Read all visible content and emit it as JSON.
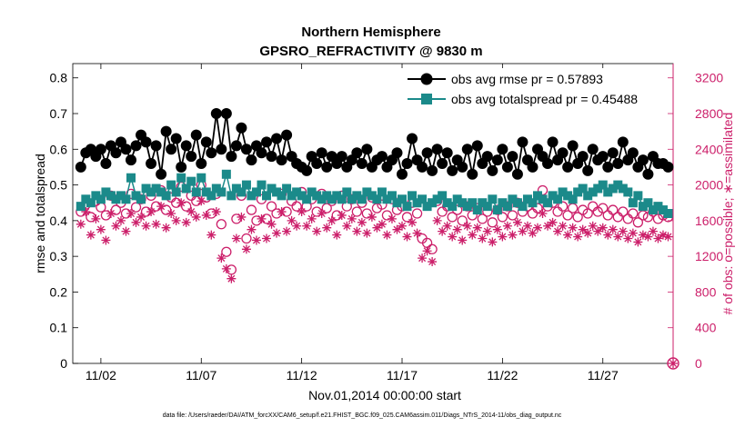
{
  "chart_data": {
    "type": "line",
    "title": [
      "Northern Hemisphere",
      "GPSRO_REFRACTIVITY @ 9830 m"
    ],
    "xlabel": "Nov.01,2014 00:00:00 start",
    "ylabel_left": "rmse and totalspread",
    "ylabel_right": "# of obs: o=possible; ∗=assimilated",
    "footnote": "data file: /Users/raeder/DAI/ATM_forcXX/CAM6_setup/f.e21.FHIST_BGC.f09_025.CAM6assim.011/Diags_NTrS_2014-11/obs_diag_output.nc",
    "xlim": [
      0.6,
      30.5
    ],
    "ylim_left": [
      0,
      0.84
    ],
    "ylim_right": [
      0,
      3360
    ],
    "x_ticks": [
      2,
      7,
      12,
      17,
      22,
      27
    ],
    "x_tick_labels": [
      "11/02",
      "11/07",
      "11/12",
      "11/17",
      "11/22",
      "11/27"
    ],
    "y_ticks_left": [
      0,
      0.1,
      0.2,
      0.3,
      0.4,
      0.5,
      0.6,
      0.7,
      0.8
    ],
    "y_tick_labels_left": [
      "0",
      "0.1",
      "0.2",
      "0.3",
      "0.4",
      "0.5",
      "0.6",
      "0.7",
      "0.8"
    ],
    "y_ticks_right": [
      0,
      400,
      800,
      1200,
      1600,
      2000,
      2400,
      2800,
      3200
    ],
    "y_tick_labels_right": [
      "0",
      "400",
      "800",
      "1200",
      "1600",
      "2000",
      "2400",
      "2800",
      "3200"
    ],
    "x": [
      1.0,
      1.25,
      1.5,
      1.75,
      2.0,
      2.25,
      2.5,
      2.75,
      3.0,
      3.25,
      3.5,
      3.75,
      4.0,
      4.25,
      4.5,
      4.75,
      5.0,
      5.25,
      5.5,
      5.75,
      6.0,
      6.25,
      6.5,
      6.75,
      7.0,
      7.25,
      7.5,
      7.75,
      8.0,
      8.25,
      8.5,
      8.75,
      9.0,
      9.25,
      9.5,
      9.75,
      10.0,
      10.25,
      10.5,
      10.75,
      11.0,
      11.25,
      11.5,
      11.75,
      12.0,
      12.25,
      12.5,
      12.75,
      13.0,
      13.25,
      13.5,
      13.75,
      14.0,
      14.25,
      14.5,
      14.75,
      15.0,
      15.25,
      15.5,
      15.75,
      16.0,
      16.25,
      16.5,
      16.75,
      17.0,
      17.25,
      17.5,
      17.75,
      18.0,
      18.25,
      18.5,
      18.75,
      19.0,
      19.25,
      19.5,
      19.75,
      20.0,
      20.25,
      20.5,
      20.75,
      21.0,
      21.25,
      21.5,
      21.75,
      22.0,
      22.25,
      22.5,
      22.75,
      23.0,
      23.25,
      23.5,
      23.75,
      24.0,
      24.25,
      24.5,
      24.75,
      25.0,
      25.25,
      25.5,
      25.75,
      26.0,
      26.25,
      26.5,
      26.75,
      27.0,
      27.25,
      27.5,
      27.75,
      28.0,
      28.25,
      28.5,
      28.75,
      29.0,
      29.25,
      29.5,
      29.75,
      30.0,
      30.25
    ],
    "series": [
      {
        "name": "obs avg rmse",
        "legend": "obs avg rmse pr = 0.57893",
        "axis": "left",
        "color": "#000000",
        "marker": "circle",
        "values": [
          0.55,
          0.59,
          0.6,
          0.58,
          0.6,
          0.56,
          0.61,
          0.59,
          0.62,
          0.6,
          0.57,
          0.61,
          0.64,
          0.62,
          0.56,
          0.61,
          0.53,
          0.65,
          0.6,
          0.63,
          0.55,
          0.61,
          0.58,
          0.64,
          0.56,
          0.62,
          0.59,
          0.7,
          0.6,
          0.7,
          0.58,
          0.61,
          0.66,
          0.6,
          0.57,
          0.61,
          0.59,
          0.62,
          0.58,
          0.63,
          0.57,
          0.64,
          0.58,
          0.56,
          0.55,
          0.54,
          0.58,
          0.56,
          0.59,
          0.55,
          0.58,
          0.56,
          0.58,
          0.55,
          0.57,
          0.59,
          0.56,
          0.6,
          0.55,
          0.57,
          0.58,
          0.55,
          0.57,
          0.59,
          0.53,
          0.56,
          0.63,
          0.57,
          0.55,
          0.59,
          0.54,
          0.6,
          0.56,
          0.59,
          0.54,
          0.57,
          0.55,
          0.6,
          0.53,
          0.61,
          0.56,
          0.58,
          0.54,
          0.57,
          0.6,
          0.55,
          0.58,
          0.53,
          0.62,
          0.57,
          0.55,
          0.6,
          0.58,
          0.56,
          0.62,
          0.57,
          0.59,
          0.55,
          0.61,
          0.56,
          0.58,
          0.54,
          0.6,
          0.57,
          0.58,
          0.55,
          0.59,
          0.56,
          0.62,
          0.57,
          0.59,
          0.55,
          0.57,
          0.53,
          0.58,
          0.56,
          0.56,
          0.55
        ]
      },
      {
        "name": "obs avg totalspread",
        "legend": "obs avg totalspread pr = 0.45488",
        "axis": "left",
        "color": "#1b8a8a",
        "marker": "square",
        "values": [
          0.44,
          0.46,
          0.45,
          0.47,
          0.46,
          0.48,
          0.47,
          0.46,
          0.47,
          0.46,
          0.52,
          0.47,
          0.46,
          0.49,
          0.48,
          0.49,
          0.48,
          0.47,
          0.5,
          0.48,
          0.52,
          0.49,
          0.51,
          0.48,
          0.52,
          0.48,
          0.47,
          0.49,
          0.48,
          0.53,
          0.47,
          0.49,
          0.48,
          0.5,
          0.47,
          0.48,
          0.5,
          0.47,
          0.49,
          0.48,
          0.47,
          0.49,
          0.47,
          0.48,
          0.47,
          0.46,
          0.48,
          0.47,
          0.46,
          0.47,
          0.46,
          0.47,
          0.46,
          0.48,
          0.46,
          0.47,
          0.46,
          0.48,
          0.47,
          0.46,
          0.48,
          0.46,
          0.47,
          0.45,
          0.46,
          0.44,
          0.47,
          0.45,
          0.46,
          0.44,
          0.45,
          0.46,
          0.47,
          0.45,
          0.44,
          0.46,
          0.45,
          0.44,
          0.45,
          0.43,
          0.45,
          0.44,
          0.46,
          0.43,
          0.45,
          0.44,
          0.46,
          0.45,
          0.44,
          0.46,
          0.45,
          0.47,
          0.46,
          0.45,
          0.47,
          0.46,
          0.48,
          0.47,
          0.46,
          0.48,
          0.49,
          0.47,
          0.48,
          0.49,
          0.5,
          0.48,
          0.49,
          0.5,
          0.49,
          0.48,
          0.45,
          0.47,
          0.44,
          0.45,
          0.43,
          0.44,
          0.43,
          0.42
        ]
      },
      {
        "name": "possible",
        "axis": "right",
        "color": "#cc1f6a",
        "marker": "open-circle",
        "values": [
          1700,
          1780,
          1640,
          1820,
          1750,
          1660,
          1880,
          1720,
          1800,
          1680,
          1900,
          1750,
          1840,
          1700,
          1880,
          1760,
          1940,
          1720,
          1860,
          1800,
          1980,
          1760,
          1880,
          1820,
          2000,
          1860,
          1680,
          1900,
          1560,
          1250,
          1050,
          1620,
          1880,
          1400,
          1720,
          1600,
          1840,
          1620,
          1760,
          1680,
          1900,
          1700,
          1820,
          1760,
          1920,
          1760,
          1840,
          1700,
          1900,
          1740,
          1820,
          1660,
          1880,
          1760,
          1840,
          1700,
          1800,
          1680,
          1860,
          1740,
          1780,
          1660,
          1840,
          1720,
          1760,
          1640,
          1800,
          1680,
          1400,
          1350,
          1280,
          1820,
          1700,
          1760,
          1640,
          1720,
          1600,
          1760,
          1660,
          1740,
          1620,
          1700,
          1580,
          1720,
          1640,
          1760,
          1660,
          1800,
          1700,
          1760,
          1680,
          1740,
          1940,
          1760,
          1800,
          1700,
          1760,
          1660,
          1740,
          1640,
          1720,
          1680,
          1760,
          1700,
          1740,
          1660,
          1720,
          1640,
          1700,
          1620,
          1680,
          1580,
          1660,
          1640,
          1700,
          1620,
          1660,
          1640
        ]
      },
      {
        "name": "assimilated",
        "axis": "right",
        "color": "#cc1f6a",
        "marker": "asterisk",
        "values": [
          1560,
          1700,
          1440,
          1620,
          1500,
          1380,
          1680,
          1540,
          1600,
          1480,
          1680,
          1580,
          1640,
          1540,
          1700,
          1560,
          1760,
          1520,
          1680,
          1600,
          1800,
          1580,
          1700,
          1640,
          1820,
          1660,
          1440,
          1700,
          1180,
          1060,
          950,
          1400,
          1640,
          1280,
          1500,
          1380,
          1620,
          1400,
          1560,
          1460,
          1700,
          1480,
          1600,
          1540,
          1700,
          1540,
          1620,
          1480,
          1680,
          1520,
          1600,
          1440,
          1660,
          1540,
          1620,
          1480,
          1580,
          1460,
          1640,
          1520,
          1560,
          1440,
          1620,
          1500,
          1540,
          1420,
          1580,
          1460,
          1180,
          1260,
          1140,
          1600,
          1480,
          1540,
          1420,
          1500,
          1380,
          1540,
          1440,
          1520,
          1400,
          1480,
          1360,
          1500,
          1420,
          1540,
          1440,
          1580,
          1480,
          1540,
          1460,
          1520,
          1680,
          1540,
          1580,
          1480,
          1540,
          1440,
          1520,
          1420,
          1500,
          1460,
          1540,
          1480,
          1520,
          1440,
          1500,
          1420,
          1480,
          1400,
          1460,
          1360,
          1440,
          1420,
          1480,
          1400,
          1440,
          1420
        ]
      }
    ],
    "end_markers": {
      "x": 30.25,
      "value": 0,
      "axis": "right",
      "color": "#cc1f6a"
    },
    "colors": {
      "black": "#000000",
      "teal": "#1b8a8a",
      "magenta": "#cc1f6a"
    }
  }
}
